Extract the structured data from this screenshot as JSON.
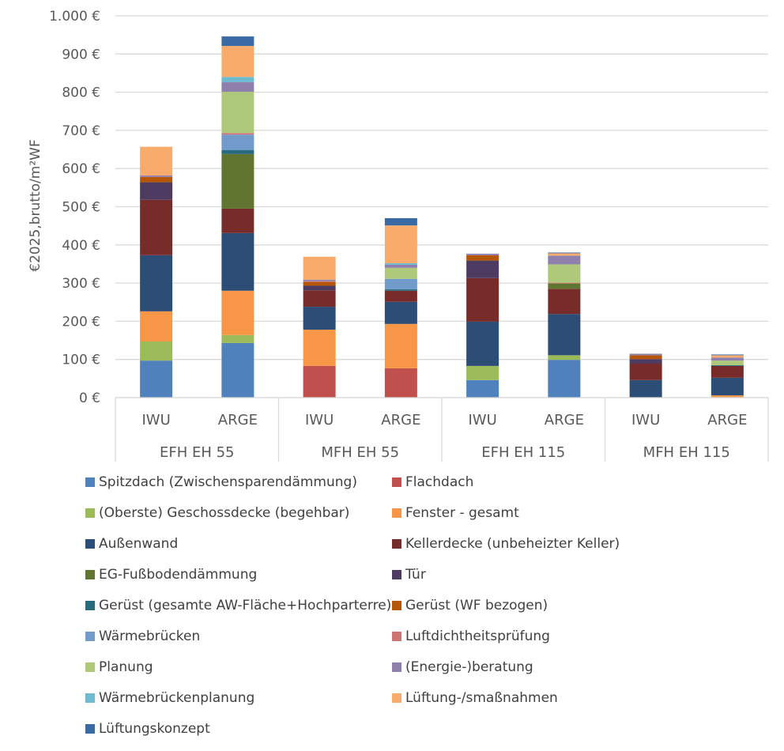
{
  "chart_data": {
    "type": "bar",
    "stacked": true,
    "title": "",
    "xlabel": "",
    "ylabel": "€2025,brutto/m²WF",
    "ylim": [
      0,
      1000
    ],
    "yticks": [
      0,
      100,
      200,
      300,
      400,
      500,
      600,
      700,
      800,
      900,
      1000
    ],
    "ytick_labels": [
      "0 €",
      "100 €",
      "200 €",
      "300 €",
      "400 €",
      "500 €",
      "600 €",
      "700 €",
      "800 €",
      "900 €",
      "1.000 €"
    ],
    "grid": true,
    "legend_position": "bottom",
    "groups": [
      {
        "label": "EFH EH 55",
        "categories": [
          "IWU",
          "ARGE"
        ]
      },
      {
        "label": "MFH EH 55",
        "categories": [
          "IWU",
          "ARGE"
        ]
      },
      {
        "label": "EFH EH 115",
        "categories": [
          "IWU",
          "ARGE"
        ]
      },
      {
        "label": "MFH EH 115",
        "categories": [
          "IWU",
          "ARGE"
        ]
      }
    ],
    "categories": [
      "EFH EH 55 / IWU",
      "EFH EH 55 / ARGE",
      "MFH EH 55 / IWU",
      "MFH EH 55 / ARGE",
      "EFH EH 115 / IWU",
      "EFH EH 115 / ARGE",
      "MFH EH 115 / IWU",
      "MFH EH 115 / ARGE"
    ],
    "series": [
      {
        "name": "Spitzdach (Zwischensparendämmung)",
        "color": "#4f81bd",
        "values": [
          97,
          143,
          0,
          0,
          46,
          99,
          0,
          0
        ]
      },
      {
        "name": "Flachdach",
        "color": "#c0504d",
        "values": [
          0,
          0,
          83,
          77,
          0,
          0,
          0,
          0
        ]
      },
      {
        "name": "(Oberste) Geschossdecke (begehbar)",
        "color": "#9bbb59",
        "values": [
          50,
          21,
          0,
          0,
          37,
          12,
          0,
          0
        ]
      },
      {
        "name": "Fenster - gesamt",
        "color": "#f79646",
        "values": [
          79,
          116,
          95,
          116,
          0,
          0,
          0,
          6
        ]
      },
      {
        "name": "Außenwand",
        "color": "#2c4d75",
        "values": [
          147,
          151,
          60,
          58,
          116,
          108,
          46,
          46
        ]
      },
      {
        "name": "Kellerdecke (unbeheizter Keller)",
        "color": "#772c2a",
        "values": [
          145,
          64,
          43,
          29,
          114,
          66,
          43,
          31
        ]
      },
      {
        "name": "EG-Fußbodendämmung",
        "color": "#5f7530",
        "values": [
          0,
          143,
          0,
          0,
          0,
          14,
          0,
          0
        ]
      },
      {
        "name": "Tür",
        "color": "#4d3b62",
        "values": [
          46,
          0,
          12,
          0,
          46,
          0,
          12,
          0
        ]
      },
      {
        "name": "Gerüst (gesamte AW-Fläche+Hochparterre)",
        "color": "#276a7c",
        "values": [
          0,
          10,
          0,
          4,
          0,
          0,
          0,
          2
        ]
      },
      {
        "name": "Gerüst (WF bezogen)",
        "color": "#b65708",
        "values": [
          14,
          0,
          10,
          0,
          14,
          0,
          10,
          0
        ]
      },
      {
        "name": "Wärmebrücken",
        "color": "#729aca",
        "values": [
          0,
          41,
          0,
          27,
          0,
          0,
          0,
          0
        ]
      },
      {
        "name": "Luftdichtheitsprüfung",
        "color": "#cd7371",
        "values": [
          0,
          4,
          2,
          0,
          0,
          2,
          0,
          0
        ]
      },
      {
        "name": "Planung",
        "color": "#afc97a",
        "values": [
          0,
          108,
          0,
          29,
          0,
          48,
          0,
          12
        ]
      },
      {
        "name": "(Energie-)beratung",
        "color": "#8f7fac",
        "values": [
          4,
          25,
          4,
          8,
          4,
          23,
          4,
          8
        ]
      },
      {
        "name": "Wärmebrückenplanung",
        "color": "#6fbacf",
        "values": [
          0,
          14,
          0,
          4,
          0,
          0,
          0,
          0
        ]
      },
      {
        "name": "Lüftung-/smaßnahmen",
        "color": "#f9ab6b",
        "values": [
          75,
          81,
          60,
          99,
          0,
          6,
          0,
          6
        ]
      },
      {
        "name": "Lüftungskonzept",
        "color": "#3a6aa4",
        "values": [
          0,
          25,
          0,
          19,
          0,
          2,
          0,
          2
        ]
      }
    ]
  },
  "axis_colors": {
    "grid": "#d9d9d9",
    "text": "#595959"
  }
}
